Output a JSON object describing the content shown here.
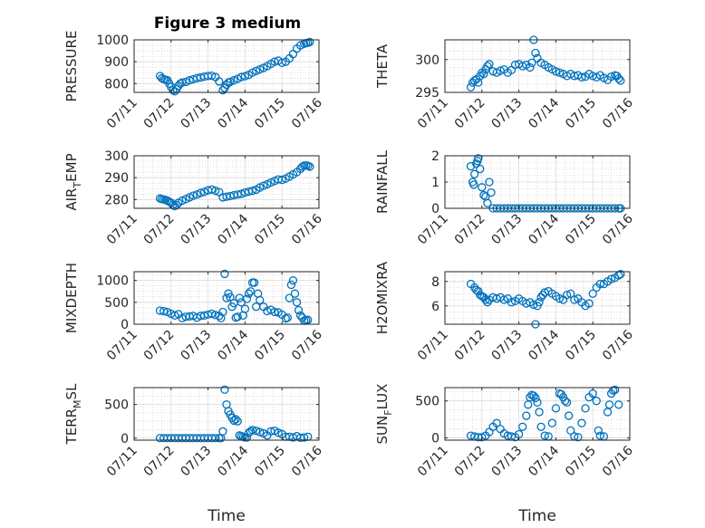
{
  "figure_title": "Figure 3 medium",
  "chart_data": [
    {
      "type": "scatter",
      "ylabel": "PRESSURE",
      "ylim": [
        760,
        1000
      ],
      "yticks": [
        800,
        900,
        1000
      ],
      "xlim": [
        0,
        5
      ],
      "xticks": [
        "07/11",
        "07/12",
        "07/13",
        "07/14",
        "07/15",
        "07/16"
      ],
      "grid": true,
      "xlabel": "",
      "x": [
        0.7,
        0.75,
        0.8,
        0.85,
        0.9,
        0.95,
        1.0,
        1.05,
        1.1,
        1.15,
        1.2,
        1.25,
        1.3,
        1.4,
        1.5,
        1.6,
        1.7,
        1.8,
        1.9,
        2.0,
        2.1,
        2.2,
        2.3,
        2.4,
        2.45,
        2.5,
        2.55,
        2.6,
        2.7,
        2.8,
        2.9,
        3.0,
        3.1,
        3.2,
        3.3,
        3.4,
        3.5,
        3.6,
        3.7,
        3.8,
        3.9,
        4.0,
        4.1,
        4.2,
        4.3,
        4.4,
        4.5,
        4.6,
        4.65,
        4.7,
        4.75
      ],
      "y": [
        835,
        825,
        820,
        818,
        815,
        800,
        785,
        770,
        765,
        775,
        790,
        800,
        805,
        808,
        815,
        820,
        825,
        828,
        832,
        835,
        836,
        830,
        810,
        770,
        780,
        795,
        805,
        808,
        815,
        822,
        830,
        834,
        840,
        850,
        858,
        865,
        872,
        880,
        890,
        900,
        905,
        895,
        900,
        915,
        935,
        960,
        975,
        982,
        985,
        987,
        990
      ]
    },
    {
      "type": "scatter",
      "ylabel": "THETA",
      "ylim": [
        295,
        303
      ],
      "yticks": [
        295,
        300
      ],
      "xlim": [
        0,
        5
      ],
      "xticks": [
        "07/11",
        "07/12",
        "07/13",
        "07/14",
        "07/15",
        "07/16"
      ],
      "grid": true,
      "xlabel": "",
      "x": [
        0.7,
        0.75,
        0.8,
        0.85,
        0.9,
        0.95,
        1.0,
        1.05,
        1.1,
        1.15,
        1.2,
        1.3,
        1.4,
        1.5,
        1.6,
        1.7,
        1.8,
        1.9,
        2.0,
        2.1,
        2.2,
        2.3,
        2.35,
        2.4,
        2.45,
        2.5,
        2.6,
        2.7,
        2.8,
        2.9,
        3.0,
        3.1,
        3.2,
        3.3,
        3.4,
        3.5,
        3.6,
        3.7,
        3.8,
        3.9,
        4.0,
        4.1,
        4.2,
        4.3,
        4.4,
        4.5,
        4.6,
        4.65,
        4.7,
        4.75
      ],
      "y": [
        295.8,
        296.5,
        296.8,
        297.0,
        296.5,
        297.5,
        298.0,
        297.8,
        298.5,
        299.0,
        299.3,
        298.2,
        298.0,
        298.3,
        298.5,
        298.0,
        298.4,
        299.2,
        299.3,
        299.0,
        299.2,
        298.8,
        299.5,
        303.0,
        301.0,
        300.2,
        299.5,
        299.2,
        298.8,
        298.5,
        298.2,
        298.0,
        297.8,
        297.5,
        297.8,
        297.5,
        297.6,
        297.3,
        297.4,
        297.8,
        297.5,
        297.3,
        297.6,
        297.2,
        296.9,
        297.4,
        297.6,
        297.5,
        297.1,
        296.8
      ]
    },
    {
      "type": "scatter",
      "ylabel": "AIR_TEMP",
      "ylim": [
        276,
        300
      ],
      "yticks": [
        280,
        290,
        300
      ],
      "xlim": [
        0,
        5
      ],
      "xticks": [
        "07/11",
        "07/12",
        "07/13",
        "07/14",
        "07/15",
        "07/16"
      ],
      "grid": true,
      "xlabel": "",
      "x": [
        0.7,
        0.75,
        0.8,
        0.85,
        0.9,
        0.95,
        1.0,
        1.05,
        1.1,
        1.15,
        1.2,
        1.3,
        1.4,
        1.5,
        1.6,
        1.7,
        1.8,
        1.9,
        2.0,
        2.1,
        2.2,
        2.3,
        2.4,
        2.5,
        2.6,
        2.7,
        2.8,
        2.9,
        3.0,
        3.1,
        3.2,
        3.3,
        3.4,
        3.5,
        3.6,
        3.7,
        3.8,
        3.9,
        4.0,
        4.1,
        4.2,
        4.3,
        4.4,
        4.5,
        4.55,
        4.6,
        4.65,
        4.7,
        4.75
      ],
      "y": [
        280.5,
        280.2,
        280.0,
        279.8,
        279.5,
        279.0,
        278.5,
        277.5,
        277.0,
        277.5,
        278.5,
        279.5,
        280.2,
        281.0,
        281.8,
        282.3,
        283.0,
        283.5,
        284.2,
        284.6,
        284.0,
        283.4,
        281.0,
        281.3,
        281.6,
        282.0,
        282.3,
        282.6,
        283.2,
        283.6,
        284.0,
        284.5,
        285.5,
        286.3,
        287.0,
        287.8,
        288.5,
        289.2,
        289.0,
        289.6,
        290.5,
        291.5,
        292.5,
        294.0,
        295.0,
        295.5,
        295.6,
        295.4,
        295.0
      ]
    },
    {
      "type": "scatter",
      "ylabel": "RAINFALL",
      "ylim": [
        0,
        2
      ],
      "yticks": [
        0,
        1,
        2
      ],
      "xlim": [
        0,
        5
      ],
      "xticks": [
        "07/11",
        "07/12",
        "07/13",
        "07/14",
        "07/15",
        "07/16"
      ],
      "grid": true,
      "xlabel": "",
      "x": [
        0.7,
        0.75,
        0.78,
        0.8,
        0.85,
        0.88,
        0.9,
        0.95,
        1.0,
        1.05,
        1.1,
        1.15,
        1.2,
        1.25,
        1.3,
        1.4,
        1.5,
        1.6,
        1.7,
        1.8,
        1.9,
        2.0,
        2.1,
        2.2,
        2.3,
        2.4,
        2.5,
        2.6,
        2.7,
        2.8,
        2.9,
        3.0,
        3.1,
        3.2,
        3.3,
        3.4,
        3.5,
        3.6,
        3.7,
        3.8,
        3.9,
        4.0,
        4.1,
        4.2,
        4.3,
        4.4,
        4.5,
        4.6,
        4.7,
        4.75
      ],
      "y": [
        1.6,
        1.0,
        0.9,
        1.3,
        1.7,
        1.8,
        1.9,
        1.5,
        0.8,
        0.5,
        0.45,
        0.2,
        1.0,
        0.6,
        0,
        0,
        0,
        0,
        0,
        0,
        0,
        0,
        0,
        0,
        0,
        0,
        0,
        0,
        0,
        0,
        0,
        0,
        0,
        0,
        0,
        0,
        0,
        0,
        0,
        0,
        0,
        0,
        0,
        0,
        0,
        0,
        0,
        0,
        0,
        0
      ]
    },
    {
      "type": "scatter",
      "ylabel": "MIXDEPTH",
      "ylim": [
        0,
        1200
      ],
      "yticks": [
        0,
        500,
        1000
      ],
      "xlim": [
        0,
        5
      ],
      "xticks": [
        "07/11",
        "07/12",
        "07/13",
        "07/14",
        "07/15",
        "07/16"
      ],
      "grid": true,
      "xlabel": "",
      "x": [
        0.7,
        0.8,
        0.9,
        1.0,
        1.1,
        1.2,
        1.3,
        1.4,
        1.5,
        1.6,
        1.7,
        1.8,
        1.9,
        2.0,
        2.1,
        2.2,
        2.3,
        2.35,
        2.4,
        2.45,
        2.5,
        2.55,
        2.6,
        2.65,
        2.7,
        2.75,
        2.8,
        2.85,
        2.9,
        2.95,
        3.0,
        3.05,
        3.1,
        3.15,
        3.2,
        3.25,
        3.3,
        3.35,
        3.4,
        3.5,
        3.6,
        3.7,
        3.8,
        3.9,
        4.0,
        4.1,
        4.15,
        4.2,
        4.25,
        4.3,
        4.35,
        4.4,
        4.45,
        4.5,
        4.55,
        4.6,
        4.65,
        4.7
      ],
      "y": [
        310,
        300,
        280,
        240,
        200,
        230,
        140,
        170,
        180,
        190,
        150,
        190,
        200,
        220,
        240,
        210,
        190,
        140,
        280,
        1150,
        600,
        700,
        620,
        400,
        480,
        150,
        170,
        600,
        500,
        200,
        350,
        580,
        700,
        750,
        950,
        950,
        400,
        700,
        550,
        400,
        300,
        330,
        280,
        270,
        220,
        130,
        150,
        600,
        900,
        1000,
        700,
        500,
        320,
        200,
        150,
        80,
        90,
        100
      ]
    },
    {
      "type": "scatter",
      "ylabel": "H2OMIXRA",
      "ylim": [
        4.5,
        8.8
      ],
      "yticks": [
        6,
        8
      ],
      "xlim": [
        0,
        5
      ],
      "xticks": [
        "07/11",
        "07/12",
        "07/13",
        "07/14",
        "07/15",
        "07/16"
      ],
      "grid": true,
      "xlabel": "",
      "x": [
        0.7,
        0.8,
        0.85,
        0.9,
        0.95,
        1.0,
        1.05,
        1.1,
        1.15,
        1.2,
        1.3,
        1.4,
        1.5,
        1.6,
        1.7,
        1.8,
        1.9,
        2.0,
        2.1,
        2.2,
        2.3,
        2.4,
        2.45,
        2.5,
        2.55,
        2.6,
        2.65,
        2.7,
        2.8,
        2.9,
        3.0,
        3.1,
        3.2,
        3.3,
        3.4,
        3.5,
        3.6,
        3.7,
        3.8,
        3.9,
        4.0,
        4.1,
        4.2,
        4.3,
        4.4,
        4.5,
        4.6,
        4.7,
        4.75
      ],
      "y": [
        7.8,
        7.5,
        7.3,
        7.2,
        6.9,
        6.8,
        6.7,
        6.5,
        6.3,
        6.5,
        6.7,
        6.6,
        6.7,
        6.5,
        6.6,
        6.3,
        6.4,
        6.6,
        6.4,
        6.2,
        6.3,
        6.1,
        4.5,
        6.0,
        6.3,
        6.7,
        6.9,
        7.1,
        7.2,
        7.0,
        6.8,
        6.6,
        6.5,
        6.9,
        7.0,
        6.5,
        6.6,
        6.3,
        6.0,
        6.2,
        7.0,
        7.5,
        7.8,
        7.8,
        8.0,
        8.2,
        8.3,
        8.5,
        8.6
      ]
    },
    {
      "type": "scatter",
      "ylabel": "TERR_MSL",
      "ylim": [
        -30,
        750
      ],
      "yticks": [
        0,
        500
      ],
      "xlim": [
        0,
        5
      ],
      "xticks": [
        "07/11",
        "07/12",
        "07/13",
        "07/14",
        "07/15",
        "07/16"
      ],
      "grid": true,
      "xlabel": "Time",
      "x": [
        0.7,
        0.8,
        0.9,
        1.0,
        1.1,
        1.2,
        1.3,
        1.4,
        1.5,
        1.6,
        1.7,
        1.8,
        1.9,
        2.0,
        2.1,
        2.2,
        2.3,
        2.35,
        2.4,
        2.45,
        2.5,
        2.55,
        2.6,
        2.65,
        2.7,
        2.75,
        2.8,
        2.85,
        2.9,
        2.95,
        3.0,
        3.05,
        3.1,
        3.15,
        3.2,
        3.3,
        3.4,
        3.5,
        3.6,
        3.7,
        3.8,
        3.9,
        4.0,
        4.1,
        4.2,
        4.3,
        4.4,
        4.5,
        4.6,
        4.7
      ],
      "y": [
        0,
        0,
        0,
        0,
        0,
        0,
        0,
        0,
        0,
        0,
        0,
        0,
        0,
        0,
        0,
        0,
        0,
        0,
        100,
        720,
        500,
        400,
        350,
        300,
        260,
        280,
        250,
        40,
        30,
        20,
        10,
        10,
        80,
        100,
        120,
        110,
        90,
        70,
        40,
        100,
        110,
        80,
        60,
        20,
        20,
        10,
        30,
        5,
        10,
        20
      ]
    },
    {
      "type": "scatter",
      "ylabel": "SUN_FLUX",
      "ylim": [
        -30,
        680
      ],
      "yticks": [
        0,
        500
      ],
      "xlim": [
        0,
        5
      ],
      "xticks": [
        "07/11",
        "07/12",
        "07/13",
        "07/14",
        "07/15",
        "07/16"
      ],
      "grid": true,
      "xlabel": "Time",
      "x": [
        0.7,
        0.8,
        0.9,
        1.0,
        1.1,
        1.2,
        1.3,
        1.4,
        1.5,
        1.6,
        1.7,
        1.8,
        1.9,
        2.0,
        2.1,
        2.2,
        2.25,
        2.3,
        2.35,
        2.4,
        2.45,
        2.5,
        2.55,
        2.6,
        2.7,
        2.8,
        2.9,
        3.0,
        3.1,
        3.15,
        3.2,
        3.25,
        3.3,
        3.35,
        3.4,
        3.5,
        3.6,
        3.7,
        3.8,
        3.9,
        4.0,
        4.1,
        4.15,
        4.2,
        4.3,
        4.4,
        4.45,
        4.5,
        4.55,
        4.6,
        4.7
      ],
      "y": [
        30,
        20,
        10,
        10,
        30,
        80,
        150,
        200,
        120,
        60,
        30,
        20,
        10,
        50,
        150,
        300,
        450,
        550,
        580,
        570,
        540,
        480,
        350,
        150,
        30,
        20,
        200,
        400,
        600,
        590,
        550,
        500,
        480,
        300,
        100,
        20,
        10,
        200,
        400,
        550,
        600,
        500,
        100,
        30,
        20,
        350,
        450,
        600,
        640,
        650,
        450
      ]
    }
  ]
}
